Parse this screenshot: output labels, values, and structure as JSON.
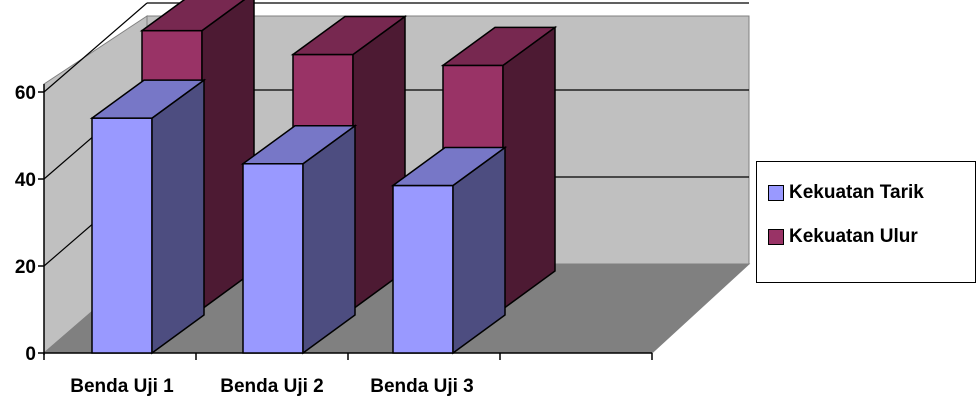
{
  "chart_data": {
    "type": "bar",
    "title": "",
    "xlabel": "",
    "ylabel": "",
    "categories": [
      "Benda Uji 1",
      "Benda Uji 2",
      "Benda Uji 3"
    ],
    "series": [
      {
        "name": "Kekuatan Tarik",
        "values": [
          54,
          43.5,
          38.5
        ],
        "color": "#9999ff"
      },
      {
        "name": "Kekuatan Ulur",
        "values": [
          64,
          58.5,
          56
        ],
        "color": "#993366"
      }
    ],
    "ylim": [
      0,
      60
    ],
    "yticks": [
      "0",
      "20",
      "40",
      "60"
    ],
    "grid": true,
    "style": "3d-clustered-column",
    "legend_position": "right"
  }
}
